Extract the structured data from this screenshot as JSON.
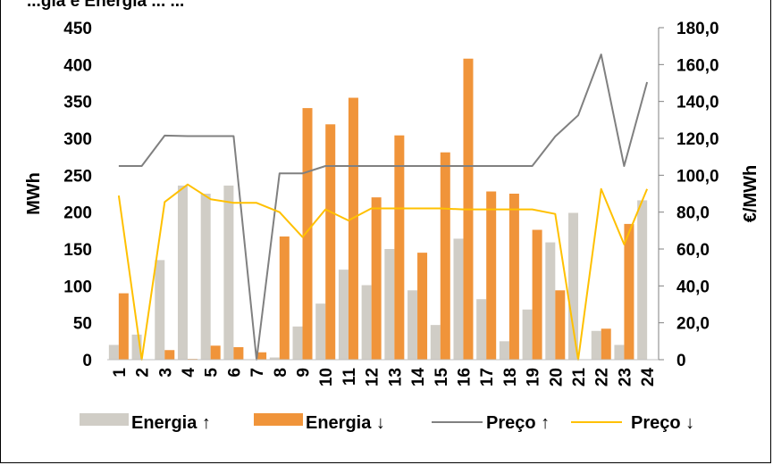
{
  "chart_data": {
    "type": "bar",
    "title": "...gia e Energia ... ...",
    "categories": [
      "1",
      "2",
      "3",
      "4",
      "5",
      "6",
      "7",
      "8",
      "9",
      "10",
      "11",
      "12",
      "13",
      "14",
      "15",
      "16",
      "17",
      "18",
      "19",
      "20",
      "21",
      "22",
      "23",
      "24"
    ],
    "left_axis": {
      "label": "MWh",
      "ylim": [
        0,
        450
      ],
      "ticks": [
        "0",
        "50",
        "100",
        "150",
        "200",
        "250",
        "300",
        "350",
        "400",
        "450"
      ]
    },
    "right_axis": {
      "label": "€/MWh",
      "ylim": [
        0,
        180
      ],
      "ticks": [
        "0",
        "20,0",
        "40,0",
        "60,0",
        "80,0",
        "100,0",
        "120,0",
        "140,0",
        "160,0",
        "180,0"
      ]
    },
    "series": [
      {
        "name": "Energia ↑",
        "kind": "bar",
        "axis": "left",
        "color": "#d0cdc6",
        "values": [
          20,
          34,
          135,
          236,
          225,
          236,
          0,
          3,
          45,
          76,
          122,
          101,
          150,
          94,
          47,
          164,
          82,
          25,
          68,
          159,
          199,
          39,
          20,
          216
        ]
      },
      {
        "name": "Energia ↓",
        "kind": "bar",
        "axis": "left",
        "color": "#f0943a",
        "values": [
          90,
          0,
          13,
          1,
          19,
          17,
          10,
          167,
          341,
          319,
          355,
          220,
          304,
          145,
          281,
          408,
          228,
          225,
          176,
          94,
          0,
          42,
          184,
          0
        ]
      },
      {
        "name": "Preço ↑",
        "kind": "line",
        "axis": "right",
        "color": "#808080",
        "values": [
          105,
          105,
          121.5,
          121.2,
          121.2,
          121.2,
          0,
          101,
          101,
          105,
          105,
          105,
          105,
          105,
          105,
          105,
          105,
          105,
          105,
          121,
          132.5,
          165.5,
          105,
          150.5
        ]
      },
      {
        "name": "Preço ↓",
        "kind": "line",
        "axis": "right",
        "color": "#ffc000",
        "values": [
          89,
          0,
          85.5,
          95,
          87,
          85,
          85,
          80,
          66.5,
          81.5,
          75.5,
          82,
          82,
          82,
          82,
          81.5,
          81.5,
          81.5,
          81.5,
          79,
          0,
          92.5,
          62.5,
          92.5
        ]
      }
    ],
    "legend_position": "bottom",
    "grid": false
  }
}
